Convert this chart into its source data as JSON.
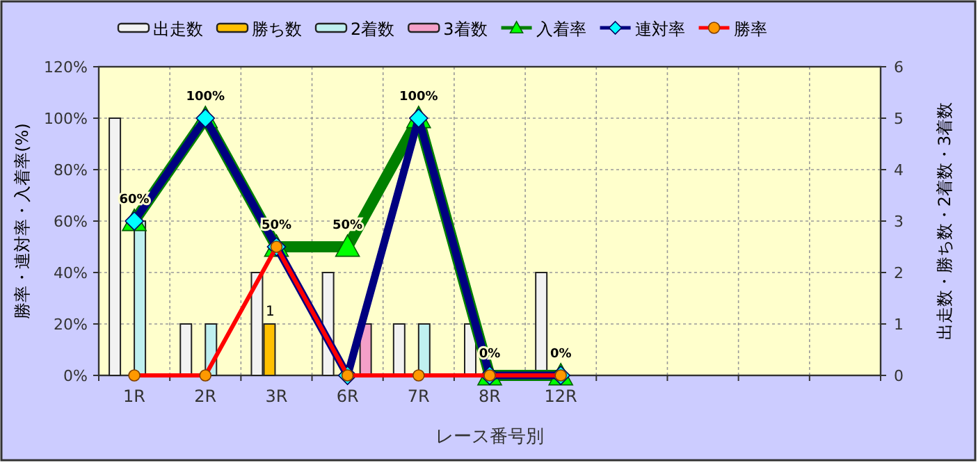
{
  "chart_data": {
    "type": "bar",
    "xlabel": "レース番号別",
    "ylabel": "勝率・連対率・入着率(%)",
    "y2label": "出走数・勝ち数・2着数・3着数",
    "categories": [
      "1R",
      "2R",
      "3R",
      "6R",
      "7R",
      "8R",
      "12R",
      null,
      null,
      null,
      null
    ],
    "series": [
      {
        "name": "出走数",
        "axis": "y2",
        "color": "#f2f2f2",
        "values": [
          5,
          1,
          2,
          2,
          1,
          1,
          2,
          null,
          null,
          null,
          null
        ]
      },
      {
        "name": "勝ち数",
        "axis": "y2",
        "color": "#ffc000",
        "values": [
          0,
          0,
          1,
          0,
          0,
          0,
          0,
          null,
          null,
          null,
          null
        ],
        "value_labels": [
          null,
          null,
          "1",
          null,
          null,
          null,
          null,
          null,
          null,
          null,
          null
        ]
      },
      {
        "name": "2着数",
        "axis": "y2",
        "color": "#bff0f0",
        "values": [
          3,
          1,
          0,
          0,
          1,
          0,
          0,
          null,
          null,
          null,
          null
        ]
      },
      {
        "name": "3着数",
        "axis": "y2",
        "color": "#f4a0c8",
        "values": [
          0,
          0,
          0,
          1,
          0,
          0,
          0,
          null,
          null,
          null,
          null
        ]
      },
      {
        "name": "入着率",
        "type": "line",
        "marker": "triangle",
        "color": "#008000",
        "colors": [
          "#00ff00",
          "#00ff00",
          "#00ff00",
          "#00ff00",
          "#00ff00",
          "#00ff00",
          "#00ff00",
          null,
          null,
          null,
          null
        ],
        "values": [
          60,
          100,
          50,
          50,
          100,
          0,
          0,
          null,
          null,
          null,
          null
        ],
        "value_labels": [
          "60%",
          "100%",
          "50%",
          "50%",
          "100%",
          "0%",
          "0%",
          null,
          null,
          null,
          null
        ]
      },
      {
        "name": "連対率",
        "type": "line",
        "marker": "diamond",
        "color": "#000080",
        "colors": [
          "#00ffff",
          "#00ffff",
          "#00ffff",
          "#00ffff",
          "#00ffff",
          "#00ffff",
          "#00ffff",
          null,
          null,
          null,
          null
        ],
        "values": [
          60,
          100,
          50,
          0,
          100,
          0,
          0,
          null,
          null,
          null,
          null
        ]
      },
      {
        "name": "勝率",
        "type": "line",
        "marker": "circle",
        "color": "#ff0000",
        "colors": [
          "#ff9900",
          "#ff9900",
          "#ff9900",
          "#ff9900",
          "#ff9900",
          "#ff9900",
          "#ff9900",
          null,
          null,
          null,
          null
        ],
        "values": [
          0,
          0,
          50,
          0,
          0,
          0,
          0,
          null,
          null,
          null,
          null
        ]
      }
    ],
    "ylim": [
      0,
      120
    ],
    "yticks": [
      {
        "value": 0,
        "label": "0%"
      },
      {
        "value": 20,
        "label": "20%"
      },
      {
        "value": 40,
        "label": "40%"
      },
      {
        "value": 60,
        "label": "60%"
      },
      {
        "value": 80,
        "label": "80%"
      },
      {
        "value": 100,
        "label": "100%"
      },
      {
        "value": 120,
        "label": "120%"
      }
    ],
    "y2lim": [
      0,
      6
    ],
    "y2ticks": [
      0,
      1,
      2,
      3,
      4,
      5,
      6
    ],
    "grid": true,
    "legend": "top"
  }
}
